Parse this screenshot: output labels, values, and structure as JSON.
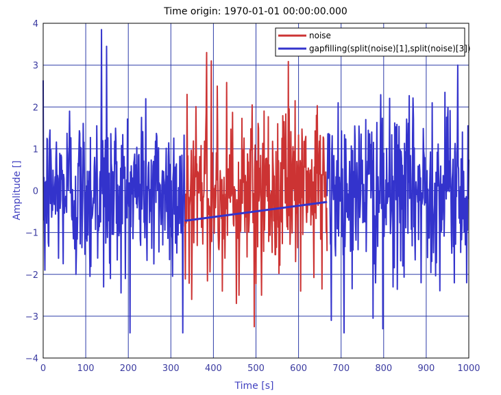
{
  "chart_data": {
    "type": "line",
    "title": "Time origin: 1970-01-01 00:00:00.000",
    "xlabel": "Time  [s]",
    "ylabel": "Amplitude  []",
    "xlim": [
      0,
      1000
    ],
    "ylim": [
      -4,
      4
    ],
    "xticks": [
      0,
      100,
      200,
      300,
      400,
      500,
      600,
      700,
      800,
      900,
      1000
    ],
    "yticks": [
      -4,
      -3,
      -2,
      -1,
      0,
      1,
      2,
      3,
      4
    ],
    "grid": true,
    "legend_position": "top-right",
    "series": [
      {
        "name": "noise",
        "color": "#cc3333",
        "x_range": [
          333,
          667
        ],
        "approx_std": 0.95,
        "peaks": [
          {
            "x": 338,
            "y": 2.3
          },
          {
            "x": 349,
            "y": -2.6
          },
          {
            "x": 384,
            "y": 3.3
          },
          {
            "x": 395,
            "y": 3.1
          },
          {
            "x": 409,
            "y": 2.5
          },
          {
            "x": 421,
            "y": -2.4
          },
          {
            "x": 460,
            "y": -2.5
          },
          {
            "x": 491,
            "y": 2.05
          },
          {
            "x": 496,
            "y": -3.25
          },
          {
            "x": 513,
            "y": -2.5
          },
          {
            "x": 551,
            "y": 1.6
          },
          {
            "x": 566,
            "y": 1.65
          },
          {
            "x": 592,
            "y": 2.15
          },
          {
            "x": 605,
            "y": -2.4
          },
          {
            "x": 655,
            "y": -2.35
          }
        ]
      },
      {
        "name": "gapfilling(split(noise)[1],split(noise)[3])",
        "color": "#3333cc",
        "x_range": [
          0,
          1000
        ],
        "approx_std": 0.95,
        "gap_fill_line": [
          [
            333,
            -0.72
          ],
          [
            667,
            -0.27
          ]
        ],
        "peaks": [
          {
            "x": 4,
            "y": -1.9
          },
          {
            "x": 62,
            "y": 1.9
          },
          {
            "x": 77,
            "y": -2.0
          },
          {
            "x": 110,
            "y": -2.05
          },
          {
            "x": 126,
            "y": 1.55
          },
          {
            "x": 137,
            "y": 3.85
          },
          {
            "x": 142,
            "y": -2.3
          },
          {
            "x": 149,
            "y": 3.45
          },
          {
            "x": 158,
            "y": -2.1
          },
          {
            "x": 193,
            "y": -2.1
          },
          {
            "x": 231,
            "y": 1.75
          },
          {
            "x": 260,
            "y": -1.75
          },
          {
            "x": 328,
            "y": -3.4
          },
          {
            "x": 677,
            "y": -3.1
          },
          {
            "x": 693,
            "y": 2.1
          },
          {
            "x": 758,
            "y": 1.7
          },
          {
            "x": 775,
            "y": -3.05
          },
          {
            "x": 798,
            "y": -3.3
          },
          {
            "x": 822,
            "y": -2.3
          },
          {
            "x": 888,
            "y": -2.2
          },
          {
            "x": 914,
            "y": 2.1
          },
          {
            "x": 944,
            "y": 2.35
          },
          {
            "x": 974,
            "y": 3.0
          },
          {
            "x": 995,
            "y": -2.2
          },
          {
            "x": 998,
            "y": 1.55
          }
        ]
      }
    ]
  }
}
